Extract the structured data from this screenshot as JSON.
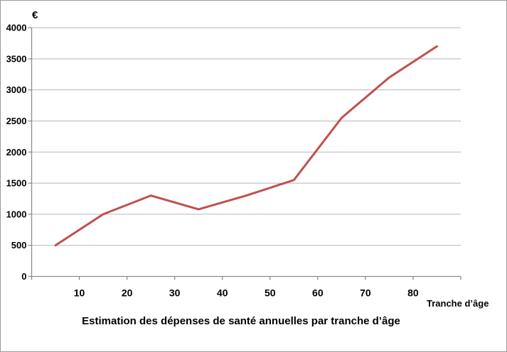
{
  "frame": {
    "background": "#ffffff",
    "border_color": "#9a9a9a"
  },
  "chart_data": {
    "type": "line",
    "title": "Estimation des dépenses de santé annuelles par tranche d’âge",
    "y_axis_title": "€",
    "x_axis_title": "Tranche d’âge",
    "x": [
      5,
      15,
      25,
      35,
      45,
      55,
      65,
      75,
      85
    ],
    "values": [
      500,
      1000,
      1300,
      1080,
      1300,
      1550,
      2550,
      3200,
      3700
    ],
    "xlim": [
      0,
      90
    ],
    "ylim": [
      0,
      4000
    ],
    "x_ticks": [
      0,
      10,
      20,
      30,
      40,
      50,
      60,
      70,
      80,
      90
    ],
    "x_tick_labels": [
      "10",
      "20",
      "30",
      "40",
      "50",
      "60",
      "70",
      "80"
    ],
    "x_tick_label_values": [
      10,
      20,
      30,
      40,
      50,
      60,
      70,
      80
    ],
    "y_ticks": [
      0,
      500,
      1000,
      1500,
      2000,
      2500,
      3000,
      3500,
      4000
    ],
    "y_tick_labels": [
      "0",
      "500",
      "1000",
      "1500",
      "2000",
      "2500",
      "3000",
      "3500",
      "4000"
    ],
    "grid": true,
    "legend": "none",
    "line_color": "#C0504D",
    "line_width": 3,
    "grid_color": "#b7b7b7",
    "axis_color": "#8c8c8c",
    "text_color": "#000000"
  }
}
